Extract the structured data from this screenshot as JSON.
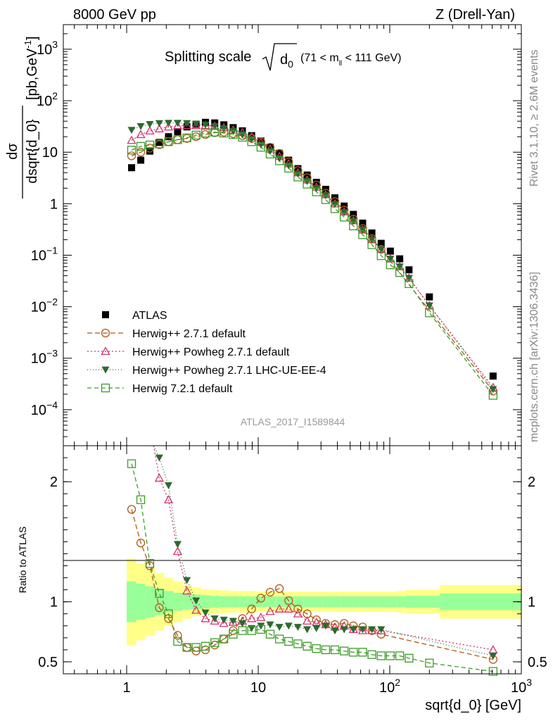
{
  "header": {
    "left": "8000 GeV pp",
    "right": "Z (Drell-Yan)"
  },
  "side_labels": {
    "rivet": "Rivet 3.1.10, ≥ 2.6M events",
    "mcplots": "mcplots.cern.ch [arXiv:1306.3436]"
  },
  "chart_data": [
    {
      "type": "scatter",
      "title_main": "Splitting scale",
      "title_root": "d",
      "title_root_sub": "0",
      "title_range_pre": "(71 < m",
      "title_range_sub": "ll",
      "title_range_post": " < 111 GeV)",
      "watermark": "ATLAS_2017_I1589844",
      "ylabel_num": "dσ",
      "ylabel_den": "dsqrt{d_0}",
      "yunit": "[pb,GeV",
      "yunit_sup": "-1",
      "yunit_close": "]",
      "xscale": "log",
      "yscale": "log",
      "xlim": [
        0.33,
        1000
      ],
      "ylim": [
        2e-05,
        3000
      ],
      "yticks": [
        {
          "v": 0.0001,
          "base": "10",
          "exp": "−4"
        },
        {
          "v": 0.001,
          "base": "10",
          "exp": "−3"
        },
        {
          "v": 0.01,
          "base": "10",
          "exp": "−2"
        },
        {
          "v": 0.1,
          "base": "10",
          "exp": "−1"
        },
        {
          "v": 1,
          "base": "1",
          "exp": ""
        },
        {
          "v": 10,
          "base": "10",
          "exp": ""
        },
        {
          "v": 100,
          "base": "10",
          "exp": "2"
        },
        {
          "v": 1000,
          "base": "10",
          "exp": "3"
        }
      ],
      "legend_position": "bottom-left",
      "series": [
        {
          "name": "ATLAS",
          "color": "#000000",
          "marker": "filled-square",
          "x": [
            1.09,
            1.28,
            1.5,
            1.77,
            2.08,
            2.44,
            2.87,
            3.37,
            3.97,
            4.67,
            5.48,
            6.45,
            7.58,
            8.91,
            10.48,
            12.32,
            14.49,
            17.03,
            20.03,
            23.55,
            27.69,
            32.55,
            38.27,
            45.0,
            52.9,
            62.2,
            73.1,
            86.0,
            101.0,
            119.0,
            140.0,
            200.0,
            610.0
          ],
          "y": [
            5.0,
            7.0,
            10.5,
            15.5,
            20.0,
            25.0,
            31.0,
            35.0,
            38.0,
            37.0,
            34.0,
            30.0,
            26.0,
            21.0,
            16.5,
            12.5,
            9.5,
            7.0,
            4.8,
            3.6,
            2.6,
            1.9,
            1.3,
            0.9,
            0.62,
            0.42,
            0.27,
            0.17,
            0.12,
            0.085,
            0.052,
            0.0155,
            0.00045
          ]
        },
        {
          "name": "Herwig++ 2.7.1 default",
          "color": "#b05a14",
          "marker": "open-circle",
          "dash": "7,4",
          "x": [
            1.09,
            1.28,
            1.5,
            1.77,
            2.08,
            2.44,
            2.87,
            3.37,
            3.97,
            4.67,
            5.48,
            6.45,
            7.58,
            8.91,
            10.48,
            12.32,
            14.49,
            17.03,
            20.03,
            23.55,
            27.69,
            32.55,
            38.27,
            45.0,
            52.9,
            62.2,
            73.1,
            86.0,
            610.0
          ],
          "y": [
            8.5,
            10.0,
            12.0,
            14.0,
            16.0,
            17.5,
            18.5,
            20.0,
            22.0,
            24.0,
            24.5,
            23.0,
            21.0,
            18.5,
            16.0,
            12.5,
            9.5,
            6.5,
            4.4,
            3.2,
            2.3,
            1.6,
            1.1,
            0.75,
            0.5,
            0.33,
            0.21,
            0.13,
            0.00023
          ]
        },
        {
          "name": "Herwig++ Powheg 2.7.1 default",
          "color": "#d6336c",
          "marker": "open-triangle",
          "dash": "2,3",
          "x": [
            1.09,
            1.28,
            1.5,
            1.77,
            2.08,
            2.44,
            2.87,
            3.37,
            3.97,
            4.67,
            5.48,
            6.45,
            7.58,
            8.91,
            10.48,
            12.32,
            14.49,
            17.03,
            20.03,
            23.55,
            27.69,
            32.55,
            38.27,
            45.0,
            52.9,
            62.2,
            73.1,
            86.0,
            101.0,
            119.0,
            140.0,
            200.0,
            610.0
          ],
          "y": [
            17.0,
            22.0,
            26.0,
            28.5,
            31.0,
            32.5,
            33.0,
            33.0,
            33.0,
            32.0,
            30.0,
            27.0,
            24.0,
            20.0,
            15.5,
            11.5,
            8.3,
            6.0,
            4.0,
            2.9,
            2.1,
            1.5,
            1.0,
            0.7,
            0.47,
            0.31,
            0.2,
            0.13,
            0.085,
            0.06,
            0.036,
            0.0105,
            0.00027
          ]
        },
        {
          "name": "Herwig++ Powheg 2.7.1 LHC-UE-EE-4",
          "color": "#2b6a2e",
          "marker": "filled-triangle-down",
          "dash": "1,3",
          "x": [
            1.09,
            1.28,
            1.5,
            1.77,
            2.08,
            2.44,
            2.87,
            3.37,
            3.97,
            4.67,
            5.48,
            6.45,
            7.58,
            8.91,
            10.48,
            12.32,
            14.49,
            17.03,
            20.03,
            23.55,
            27.69,
            32.55,
            38.27,
            45.0,
            52.9,
            62.2,
            73.1,
            86.0,
            101.0,
            119.0,
            140.0,
            200.0,
            610.0
          ],
          "y": [
            27.0,
            32.0,
            35.0,
            36.5,
            37.0,
            37.0,
            36.5,
            35.5,
            34.0,
            32.0,
            29.0,
            25.5,
            22.0,
            18.0,
            14.0,
            10.5,
            7.6,
            5.5,
            3.8,
            2.75,
            2.0,
            1.45,
            0.98,
            0.68,
            0.46,
            0.31,
            0.2,
            0.13,
            0.085,
            0.06,
            0.036,
            0.0105,
            0.00025
          ]
        },
        {
          "name": "Herwig 7.2.1 default",
          "color": "#3c9c2a",
          "marker": "open-square",
          "dash": "6,4",
          "x": [
            1.09,
            1.28,
            1.5,
            1.77,
            2.08,
            2.44,
            2.87,
            3.37,
            3.97,
            4.67,
            5.48,
            6.45,
            7.58,
            8.91,
            10.48,
            12.32,
            14.49,
            17.03,
            20.03,
            23.55,
            27.69,
            32.55,
            38.27,
            45.0,
            52.9,
            62.2,
            73.1,
            86.0,
            101.0,
            119.0,
            140.0,
            200.0,
            610.0
          ],
          "y": [
            11.0,
            13.0,
            13.8,
            14.5,
            16.0,
            17.5,
            19.0,
            21.5,
            23.5,
            24.5,
            23.5,
            22.0,
            19.5,
            16.0,
            12.5,
            9.2,
            6.8,
            4.9,
            3.3,
            2.4,
            1.7,
            1.2,
            0.8,
            0.55,
            0.37,
            0.25,
            0.16,
            0.098,
            0.065,
            0.046,
            0.028,
            0.0076,
            0.00019
          ]
        }
      ]
    },
    {
      "type": "scatter",
      "ylabel": "Ratio to ATLAS",
      "xlabel": "sqrt{d_0} [GeV]",
      "xscale": "log",
      "xlim": [
        0.33,
        1000
      ],
      "ylim": [
        0.4,
        2.3
      ],
      "yticks": [
        {
          "v": 0.5,
          "label": "0.5"
        },
        {
          "v": 1,
          "label": "1"
        },
        {
          "v": 2,
          "label": "2"
        }
      ],
      "xticks": [
        {
          "v": 1,
          "base": "1",
          "exp": ""
        },
        {
          "v": 10,
          "base": "10",
          "exp": ""
        },
        {
          "v": 100,
          "base": "10",
          "exp": "2"
        },
        {
          "v": 1000,
          "base": "10",
          "exp": "3"
        }
      ],
      "uncertainty_bands": {
        "colors": {
          "inner": "#99ff99",
          "outer": "#ffff88"
        },
        "edges": [
          1.0,
          1.18,
          1.39,
          1.64,
          1.93,
          2.27,
          2.67,
          3.14,
          3.7,
          4.35,
          5.12,
          6.03,
          7.1,
          8.35,
          9.83,
          11.57,
          13.62,
          16.03,
          18.87,
          22.21,
          26.15,
          30.78,
          36.24,
          42.66,
          50.22,
          59.12,
          69.6,
          81.93,
          96.45,
          113.5,
          133.6,
          240.0,
          1000.0
        ],
        "inner": [
          0.17,
          0.15,
          0.13,
          0.11,
          0.09,
          0.075,
          0.065,
          0.06,
          0.055,
          0.05,
          0.045,
          0.045,
          0.045,
          0.045,
          0.045,
          0.045,
          0.045,
          0.045,
          0.045,
          0.045,
          0.045,
          0.045,
          0.045,
          0.045,
          0.045,
          0.045,
          0.045,
          0.045,
          0.045,
          0.045,
          0.05,
          0.07
        ],
        "outer": [
          0.36,
          0.32,
          0.28,
          0.24,
          0.2,
          0.17,
          0.14,
          0.12,
          0.105,
          0.1,
          0.095,
          0.09,
          0.09,
          0.09,
          0.085,
          0.085,
          0.085,
          0.085,
          0.085,
          0.085,
          0.085,
          0.085,
          0.085,
          0.085,
          0.085,
          0.085,
          0.085,
          0.085,
          0.085,
          0.09,
          0.1,
          0.14
        ]
      },
      "series": [
        {
          "name": "Herwig++ 2.7.1 default",
          "color": "#b05a14",
          "marker": "open-circle",
          "dash": "7,4",
          "x": [
            1.09,
            1.28,
            1.5,
            1.77,
            2.08,
            2.44,
            2.87,
            3.37,
            3.97,
            4.67,
            5.48,
            6.45,
            7.58,
            8.91,
            10.48,
            12.32,
            14.49,
            17.03,
            20.03,
            23.55,
            27.69,
            32.55,
            38.27,
            45.0,
            52.9,
            62.2,
            73.1,
            86.0,
            610.0
          ],
          "y": [
            1.77,
            1.49,
            1.3,
            0.95,
            0.86,
            0.72,
            0.62,
            0.59,
            0.6,
            0.64,
            0.69,
            0.76,
            0.86,
            0.94,
            1.03,
            1.08,
            1.11,
            1.01,
            0.94,
            0.9,
            0.85,
            0.82,
            0.81,
            0.82,
            0.8,
            0.79,
            0.76,
            0.73,
            0.52
          ]
        },
        {
          "name": "Herwig++ Powheg 2.7.1 default",
          "color": "#d6336c",
          "marker": "open-triangle",
          "dash": "2,3",
          "x": [
            1.77,
            2.08,
            2.44,
            2.87,
            3.37,
            3.97,
            4.67,
            5.48,
            6.45,
            7.58,
            8.91,
            10.48,
            12.32,
            14.49,
            17.03,
            20.03,
            23.55,
            27.69,
            32.55,
            38.27,
            45.0,
            52.9,
            62.2,
            73.1,
            86.0,
            610.0
          ],
          "y": [
            2.03,
            1.85,
            1.42,
            1.09,
            0.93,
            0.86,
            0.84,
            0.82,
            0.83,
            0.84,
            0.86,
            0.87,
            0.92,
            0.94,
            0.94,
            0.9,
            0.84,
            0.83,
            0.81,
            0.79,
            0.8,
            0.77,
            0.76,
            0.76,
            0.76,
            0.6
          ]
        },
        {
          "name": "Herwig++ Powheg 2.7.1 LHC-UE-EE-4",
          "color": "#2b6a2e",
          "marker": "filled-triangle-down",
          "dash": "1,3",
          "x": [
            1.77,
            2.08,
            2.44,
            2.87,
            3.37,
            3.97,
            4.67,
            5.48,
            6.45,
            7.58,
            8.91,
            10.48,
            12.32,
            14.49,
            17.03,
            20.03,
            23.55,
            27.69,
            32.55,
            38.27,
            45.0,
            52.9,
            62.2,
            73.1,
            86.0,
            610.0
          ],
          "y": [
            2.2,
            1.97,
            1.48,
            1.18,
            1.01,
            0.91,
            0.86,
            0.85,
            0.84,
            0.82,
            0.78,
            0.8,
            0.81,
            0.79,
            0.8,
            0.79,
            0.77,
            0.78,
            0.8,
            0.76,
            0.77,
            0.77,
            0.77,
            0.77,
            0.77,
            0.55
          ]
        },
        {
          "name": "Herwig 7.2.1 default",
          "color": "#3c9c2a",
          "marker": "open-square",
          "dash": "6,4",
          "x": [
            1.09,
            1.28,
            1.5,
            1.77,
            2.08,
            2.44,
            2.87,
            3.37,
            3.97,
            4.67,
            5.48,
            6.45,
            7.58,
            8.91,
            10.48,
            12.32,
            14.49,
            17.03,
            20.03,
            23.55,
            27.69,
            32.55,
            38.27,
            45.0,
            52.9,
            62.2,
            73.1,
            86.0,
            101.0,
            119.0,
            140.0,
            200.0,
            610.0
          ],
          "y": [
            2.15,
            1.85,
            1.32,
            1.07,
            0.9,
            0.67,
            0.62,
            0.62,
            0.63,
            0.66,
            0.69,
            0.73,
            0.76,
            0.76,
            0.77,
            0.73,
            0.69,
            0.67,
            0.65,
            0.63,
            0.61,
            0.6,
            0.6,
            0.59,
            0.58,
            0.58,
            0.56,
            0.55,
            0.55,
            0.55,
            0.53,
            0.49,
            0.42
          ]
        }
      ]
    }
  ]
}
